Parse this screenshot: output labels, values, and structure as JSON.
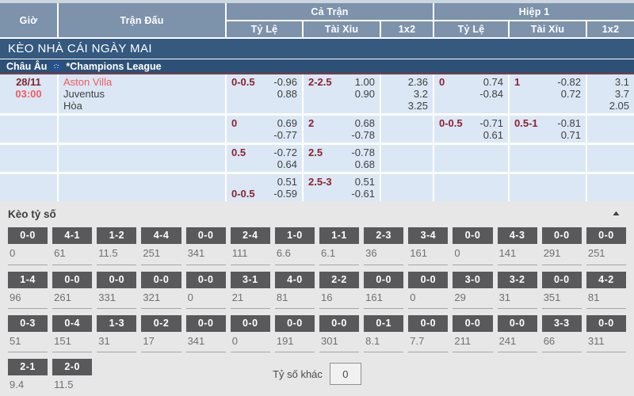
{
  "header": {
    "col_time": "Giờ",
    "col_match": "Trận Đấu",
    "group_full_time": "Cả Trận",
    "group_first_half": "Hiệp 1",
    "sub_handicap": "Tỷ Lệ",
    "sub_over_under": "Tài Xỉu",
    "sub_1x2": "1x2"
  },
  "banner": {
    "title": "KÈO NHÀ CÁI NGÀY MAI"
  },
  "league": {
    "region": "Châu Âu",
    "flag_icon": "eu-flag-icon",
    "name": "*Champions League"
  },
  "match": {
    "date": "28/11",
    "time": "03:00",
    "home": "Aston Villa",
    "away": "Juventus",
    "draw": "Hòa"
  },
  "odds_rows": [
    {
      "ct_hdp": {
        "l1": "0-0.5",
        "v1": "-0.96",
        "l2": "",
        "v2": "0.88"
      },
      "ct_ou": {
        "l1": "2-2.5",
        "v1": "1.00",
        "l2": "",
        "v2": "0.90"
      },
      "ct_1x2": [
        "2.36",
        "3.2",
        "3.25"
      ],
      "h1_hdp": {
        "l1": "0",
        "v1": "0.74",
        "l2": "",
        "v2": "-0.84"
      },
      "h1_ou": {
        "l1": "1",
        "v1": "-0.82",
        "l2": "",
        "v2": "0.72"
      },
      "h1_1x2": [
        "3.1",
        "3.7",
        "2.05"
      ]
    },
    {
      "ct_hdp": {
        "l1": "0",
        "v1": "0.69",
        "l2": "",
        "v2": "-0.77"
      },
      "ct_ou": {
        "l1": "2",
        "v1": "0.68",
        "l2": "",
        "v2": "-0.78"
      },
      "ct_1x2": [],
      "h1_hdp": {
        "l1": "0-0.5",
        "v1": "-0.71",
        "l2": "",
        "v2": "0.61"
      },
      "h1_ou": {
        "l1": "0.5-1",
        "v1": "-0.81",
        "l2": "",
        "v2": "0.71"
      },
      "h1_1x2": []
    },
    {
      "ct_hdp": {
        "l1": "0.5",
        "v1": "-0.72",
        "l2": "",
        "v2": "0.64"
      },
      "ct_ou": {
        "l1": "2.5",
        "v1": "-0.78",
        "l2": "",
        "v2": "0.68"
      },
      "ct_1x2": [],
      "h1_hdp": {
        "l1": "",
        "v1": "",
        "l2": "",
        "v2": ""
      },
      "h1_ou": {
        "l1": "",
        "v1": "",
        "l2": "",
        "v2": ""
      },
      "h1_1x2": []
    },
    {
      "ct_hdp": {
        "l1": "",
        "v1": "0.51",
        "l2": "0-0.5",
        "v2": "-0.59"
      },
      "ct_ou": {
        "l1": "2.5-3",
        "v1": "0.51",
        "l2": "",
        "v2": "-0.61"
      },
      "ct_1x2": [],
      "h1_hdp": {
        "l1": "",
        "v1": "",
        "l2": "",
        "v2": ""
      },
      "h1_ou": {
        "l1": "",
        "v1": "",
        "l2": "",
        "v2": ""
      },
      "h1_1x2": []
    }
  ],
  "score_section": {
    "title": "Kèo tỷ số",
    "collapse_icon": "triangle-up",
    "rows": [
      [
        {
          "s": "0-0",
          "o": "0"
        },
        {
          "s": "4-1",
          "o": "61"
        },
        {
          "s": "1-2",
          "o": "11.5"
        },
        {
          "s": "4-4",
          "o": "251"
        },
        {
          "s": "0-0",
          "o": "341"
        },
        {
          "s": "2-4",
          "o": "111"
        },
        {
          "s": "1-0",
          "o": "6.6"
        },
        {
          "s": "1-1",
          "o": "6.1"
        },
        {
          "s": "2-3",
          "o": "36"
        },
        {
          "s": "3-4",
          "o": "161"
        },
        {
          "s": "0-0",
          "o": "0"
        },
        {
          "s": "4-3",
          "o": "141"
        },
        {
          "s": "0-0",
          "o": "291"
        },
        {
          "s": "0-0",
          "o": "251"
        }
      ],
      [
        {
          "s": "1-4",
          "o": "96"
        },
        {
          "s": "0-0",
          "o": "261"
        },
        {
          "s": "0-0",
          "o": "331"
        },
        {
          "s": "0-0",
          "o": "321"
        },
        {
          "s": "0-0",
          "o": "0"
        },
        {
          "s": "3-1",
          "o": "21"
        },
        {
          "s": "4-0",
          "o": "81"
        },
        {
          "s": "2-2",
          "o": "16"
        },
        {
          "s": "0-0",
          "o": "161"
        },
        {
          "s": "0-0",
          "o": "0"
        },
        {
          "s": "3-0",
          "o": "29"
        },
        {
          "s": "3-2",
          "o": "31"
        },
        {
          "s": "0-0",
          "o": "351"
        },
        {
          "s": "4-2",
          "o": "81"
        }
      ],
      [
        {
          "s": "0-3",
          "o": "51"
        },
        {
          "s": "0-4",
          "o": "151"
        },
        {
          "s": "1-3",
          "o": "31"
        },
        {
          "s": "0-2",
          "o": "17"
        },
        {
          "s": "0-0",
          "o": "341"
        },
        {
          "s": "0-0",
          "o": "0"
        },
        {
          "s": "0-0",
          "o": "191"
        },
        {
          "s": "0-0",
          "o": "301"
        },
        {
          "s": "0-1",
          "o": "8.1"
        },
        {
          "s": "0-0",
          "o": "7.7"
        },
        {
          "s": "0-0",
          "o": "211"
        },
        {
          "s": "0-0",
          "o": "241"
        },
        {
          "s": "3-3",
          "o": "66"
        },
        {
          "s": "0-0",
          "o": "311"
        }
      ],
      [
        {
          "s": "2-1",
          "o": "9.4"
        },
        {
          "s": "2-0",
          "o": "11.5"
        }
      ]
    ],
    "other_label": "Tỷ số khác",
    "other_value": "0"
  },
  "colors": {
    "header_bg": "#7d92ab",
    "banner_bg": "#35597f",
    "league_bg": "#2d5176",
    "odds_row_bg": "#dbe7f4",
    "handicap_label": "#8e2130",
    "team_red": "#f2595f",
    "score_tile_bg": "#59595b",
    "section_bg": "#e7e7e7"
  }
}
